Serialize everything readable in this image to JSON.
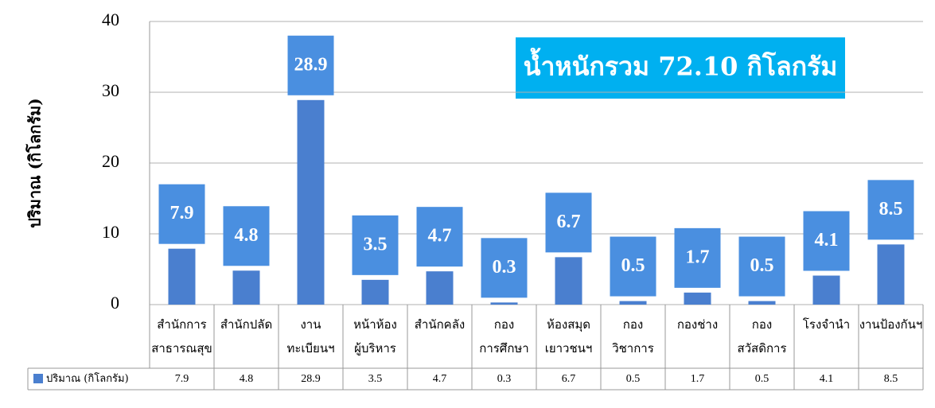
{
  "chart_data": {
    "type": "bar",
    "y_label": "ปริมาณ (กิโลกรัม)",
    "annotation": "น้ำหนักรวม 72.10  กิโลกรัม",
    "categories": [
      "สำนักการ\nสาธารณสุข",
      "สำนักปลัด",
      "งาน\nทะเบียนฯ",
      "หน้าห้อง\nผู้บริหาร",
      "สำนักคลัง",
      "กอง\nการศึกษา",
      "ห้องสมุด\nเยาวชนฯ",
      "กอง\nวิชาการ",
      "กองช่าง",
      "กอง\nสวัสดิการ",
      "โรงจำนำ",
      "งานป้องกันฯ"
    ],
    "series": [
      {
        "name": "ปริมาณ (กิโลกรัม)",
        "color": "#4a7fcf",
        "label_color": "#4a8fe0",
        "values": [
          7.9,
          4.8,
          28.9,
          3.5,
          4.7,
          0.3,
          6.7,
          0.5,
          1.7,
          0.5,
          4.1,
          8.5
        ]
      }
    ],
    "ylim": [
      0,
      40
    ],
    "yticks": [
      0,
      10,
      20,
      30,
      40
    ],
    "grid": true
  }
}
